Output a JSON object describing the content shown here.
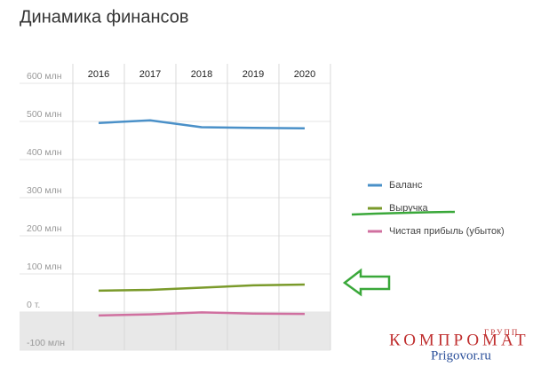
{
  "chart_data": {
    "type": "line",
    "title": "Динамика финансов",
    "categories": [
      "2016",
      "2017",
      "2018",
      "2019",
      "2020"
    ],
    "series": [
      {
        "name": "Баланс",
        "color": "#4a90c8",
        "values": [
          496,
          503,
          485,
          483,
          482
        ]
      },
      {
        "name": "Выручка",
        "color": "#7a9a2a",
        "values": [
          56,
          58,
          64,
          70,
          72
        ]
      },
      {
        "name": "Чистая прибыль (убыток)",
        "color": "#d070a0",
        "values": [
          -9,
          -6,
          -1,
          -4,
          -5
        ]
      }
    ],
    "ylim": [
      -100,
      600
    ],
    "yticks": [
      {
        "value": -100,
        "label": "-100 млн"
      },
      {
        "value": 0,
        "label": "0 т."
      },
      {
        "value": 100,
        "label": "100 млн"
      },
      {
        "value": 200,
        "label": "200 млн"
      },
      {
        "value": 300,
        "label": "300 млн"
      },
      {
        "value": 400,
        "label": "400 млн"
      },
      {
        "value": 500,
        "label": "500 млн"
      },
      {
        "value": 600,
        "label": "600 млн"
      }
    ],
    "grid": true,
    "legend": "right",
    "negative_fill": "#e8e8e8"
  },
  "watermark": {
    "main": "КОМПРОМАТ",
    "small": "ГРУПП",
    "site": "Prigovor.ru"
  }
}
